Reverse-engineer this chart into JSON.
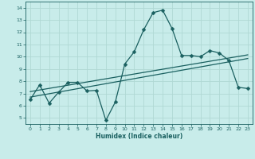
{
  "xlabel": "Humidex (Indice chaleur)",
  "ylabel": "",
  "xlim": [
    -0.5,
    23.5
  ],
  "ylim": [
    4.5,
    14.5
  ],
  "xticks": [
    0,
    1,
    2,
    3,
    4,
    5,
    6,
    7,
    8,
    9,
    10,
    11,
    12,
    13,
    14,
    15,
    16,
    17,
    18,
    19,
    20,
    21,
    22,
    23
  ],
  "yticks": [
    5,
    6,
    7,
    8,
    9,
    10,
    11,
    12,
    13,
    14
  ],
  "bg_color": "#c8ecea",
  "grid_color": "#b0d8d4",
  "line_color": "#1a6060",
  "line1_x": [
    0,
    1,
    2,
    3,
    4,
    5,
    6,
    7,
    8,
    9,
    10,
    11,
    12,
    13,
    14,
    15,
    16,
    17,
    18,
    19,
    20,
    21,
    22,
    23
  ],
  "line1_y": [
    6.5,
    7.7,
    6.2,
    7.1,
    7.9,
    7.9,
    7.2,
    7.25,
    4.8,
    6.3,
    9.4,
    10.4,
    12.2,
    13.6,
    13.8,
    12.3,
    10.1,
    10.1,
    10.0,
    10.5,
    10.3,
    9.7,
    7.5,
    7.4
  ],
  "line2_x": [
    0,
    23
  ],
  "line2_y": [
    7.15,
    10.15
  ],
  "line3_x": [
    0,
    23
  ],
  "line3_y": [
    6.7,
    9.85
  ],
  "marker_size": 2.5,
  "line_width": 0.9
}
